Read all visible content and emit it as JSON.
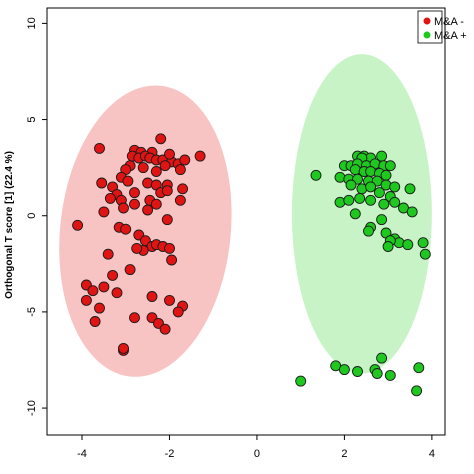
{
  "chart_data": {
    "type": "scatter",
    "title": "",
    "xlabel": "",
    "ylabel": "Orthogonal T score [1] (22.4 %)",
    "xlim": [
      -4.8,
      4.3
    ],
    "ylim": [
      -11.4,
      10.8
    ],
    "x_ticks": [
      "-4",
      "-2",
      "0",
      "2",
      "4"
    ],
    "x_tick_values": [
      -4,
      -2,
      0,
      2,
      4
    ],
    "y_ticks": [
      "-10",
      "-5",
      "0",
      "5",
      "10"
    ],
    "y_tick_values": [
      -10,
      -5,
      0,
      5,
      10
    ],
    "grid": false,
    "legend_position": "top-right",
    "series": [
      {
        "name": "M&A -",
        "color": "#e11414",
        "ellipse_color": "#f7c0c0",
        "ellipse": {
          "cx": -2.55,
          "cy": -0.8,
          "rx": 1.95,
          "ry": 7.6,
          "angle_deg": 6
        },
        "points": [
          [
            -3.6,
            3.5
          ],
          [
            -2.8,
            3.4
          ],
          [
            -2.65,
            3.3
          ],
          [
            -2.4,
            3.3
          ],
          [
            -2.2,
            4.0
          ],
          [
            -2.85,
            3.1
          ],
          [
            -2.7,
            3.0
          ],
          [
            -2.55,
            3.1
          ],
          [
            -2.45,
            3.0
          ],
          [
            -2.3,
            2.9
          ],
          [
            -2.15,
            2.9
          ],
          [
            -1.95,
            2.8
          ],
          [
            -1.8,
            2.7
          ],
          [
            -1.65,
            2.9
          ],
          [
            -1.3,
            3.1
          ],
          [
            -2.0,
            3.2
          ],
          [
            -2.9,
            2.6
          ],
          [
            -2.6,
            2.5
          ],
          [
            -2.3,
            2.3
          ],
          [
            -2.1,
            2.6
          ],
          [
            -1.75,
            2.4
          ],
          [
            -3.0,
            2.4
          ],
          [
            -3.1,
            2.0
          ],
          [
            -2.95,
            1.8
          ],
          [
            -2.5,
            1.7
          ],
          [
            -2.3,
            1.6
          ],
          [
            -2.05,
            1.6
          ],
          [
            -1.7,
            1.4
          ],
          [
            -3.3,
            1.5
          ],
          [
            -3.55,
            1.7
          ],
          [
            -3.2,
            1.1
          ],
          [
            -2.8,
            1.2
          ],
          [
            -2.2,
            1.2
          ],
          [
            -2.05,
            1.3
          ],
          [
            -3.35,
            0.9
          ],
          [
            -3.1,
            0.8
          ],
          [
            -2.8,
            0.6
          ],
          [
            -2.45,
            0.8
          ],
          [
            -2.3,
            0.6
          ],
          [
            -1.75,
            0.8
          ],
          [
            -3.5,
            0.2
          ],
          [
            -3.05,
            0.4
          ],
          [
            -2.5,
            0.3
          ],
          [
            -2.05,
            -0.2
          ],
          [
            -4.1,
            -0.5
          ],
          [
            -3.15,
            -0.6
          ],
          [
            -3.0,
            -0.7
          ],
          [
            -2.7,
            -1.0
          ],
          [
            -2.55,
            -1.3
          ],
          [
            -2.4,
            -1.6
          ],
          [
            -2.3,
            -1.5
          ],
          [
            -2.15,
            -1.6
          ],
          [
            -2.0,
            -1.7
          ],
          [
            -1.95,
            -2.3
          ],
          [
            -2.6,
            -1.8
          ],
          [
            -2.75,
            -1.7
          ],
          [
            -3.4,
            -2.0
          ],
          [
            -2.9,
            -2.8
          ],
          [
            -3.3,
            -3.1
          ],
          [
            -3.9,
            -3.6
          ],
          [
            -3.75,
            -3.9
          ],
          [
            -3.5,
            -3.7
          ],
          [
            -3.2,
            -4.0
          ],
          [
            -2.4,
            -4.2
          ],
          [
            -2.0,
            -4.4
          ],
          [
            -3.9,
            -4.4
          ],
          [
            -3.6,
            -4.8
          ],
          [
            -1.7,
            -4.7
          ],
          [
            -1.8,
            -5.0
          ],
          [
            -2.8,
            -5.3
          ],
          [
            -2.4,
            -5.3
          ],
          [
            -2.25,
            -5.6
          ],
          [
            -3.7,
            -5.5
          ],
          [
            -2.1,
            -5.9
          ],
          [
            -3.05,
            -7.0
          ],
          [
            -3.05,
            -6.9
          ]
        ]
      },
      {
        "name": "M&A +",
        "color": "#1ec81e",
        "ellipse_color": "#c4f2c4",
        "ellipse": {
          "cx": 2.4,
          "cy": 0.1,
          "rx": 1.6,
          "ry": 8.3,
          "angle_deg": 0
        },
        "points": [
          [
            2.3,
            3.1
          ],
          [
            2.45,
            3.1
          ],
          [
            2.6,
            3.0
          ],
          [
            2.85,
            3.1
          ],
          [
            2.4,
            3.0
          ],
          [
            2.0,
            2.6
          ],
          [
            2.15,
            2.6
          ],
          [
            2.3,
            2.7
          ],
          [
            2.5,
            2.6
          ],
          [
            2.7,
            2.7
          ],
          [
            2.9,
            2.6
          ],
          [
            3.05,
            2.6
          ],
          [
            2.25,
            2.4
          ],
          [
            2.45,
            2.3
          ],
          [
            2.6,
            2.3
          ],
          [
            2.8,
            2.2
          ],
          [
            2.95,
            2.1
          ],
          [
            1.35,
            2.1
          ],
          [
            1.9,
            2.0
          ],
          [
            2.1,
            1.9
          ],
          [
            2.3,
            1.9
          ],
          [
            2.55,
            1.8
          ],
          [
            2.75,
            1.8
          ],
          [
            2.95,
            1.6
          ],
          [
            3.15,
            1.5
          ],
          [
            3.5,
            1.4
          ],
          [
            2.15,
            1.6
          ],
          [
            2.4,
            1.4
          ],
          [
            2.6,
            1.5
          ],
          [
            2.8,
            1.2
          ],
          [
            3.05,
            1.0
          ],
          [
            1.9,
            0.7
          ],
          [
            2.1,
            0.8
          ],
          [
            2.35,
            0.9
          ],
          [
            2.6,
            0.8
          ],
          [
            3.15,
            0.7
          ],
          [
            3.35,
            0.4
          ],
          [
            2.9,
            0.6
          ],
          [
            3.55,
            0.2
          ],
          [
            2.25,
            0.1
          ],
          [
            2.85,
            -0.2
          ],
          [
            2.6,
            -0.6
          ],
          [
            2.55,
            -0.8
          ],
          [
            2.95,
            -0.9
          ],
          [
            3.15,
            -1.2
          ],
          [
            3.25,
            -1.4
          ],
          [
            3.05,
            -1.3
          ],
          [
            3.45,
            -1.5
          ],
          [
            3.8,
            -1.4
          ],
          [
            3.0,
            -1.6
          ],
          [
            3.85,
            -2.0
          ],
          [
            2.85,
            -7.4
          ],
          [
            1.8,
            -7.8
          ],
          [
            2.0,
            -8.0
          ],
          [
            2.3,
            -8.1
          ],
          [
            2.7,
            -8.0
          ],
          [
            2.75,
            -8.2
          ],
          [
            3.05,
            -8.3
          ],
          [
            3.7,
            -7.9
          ],
          [
            1.0,
            -8.6
          ],
          [
            3.65,
            -9.1
          ]
        ]
      }
    ]
  }
}
